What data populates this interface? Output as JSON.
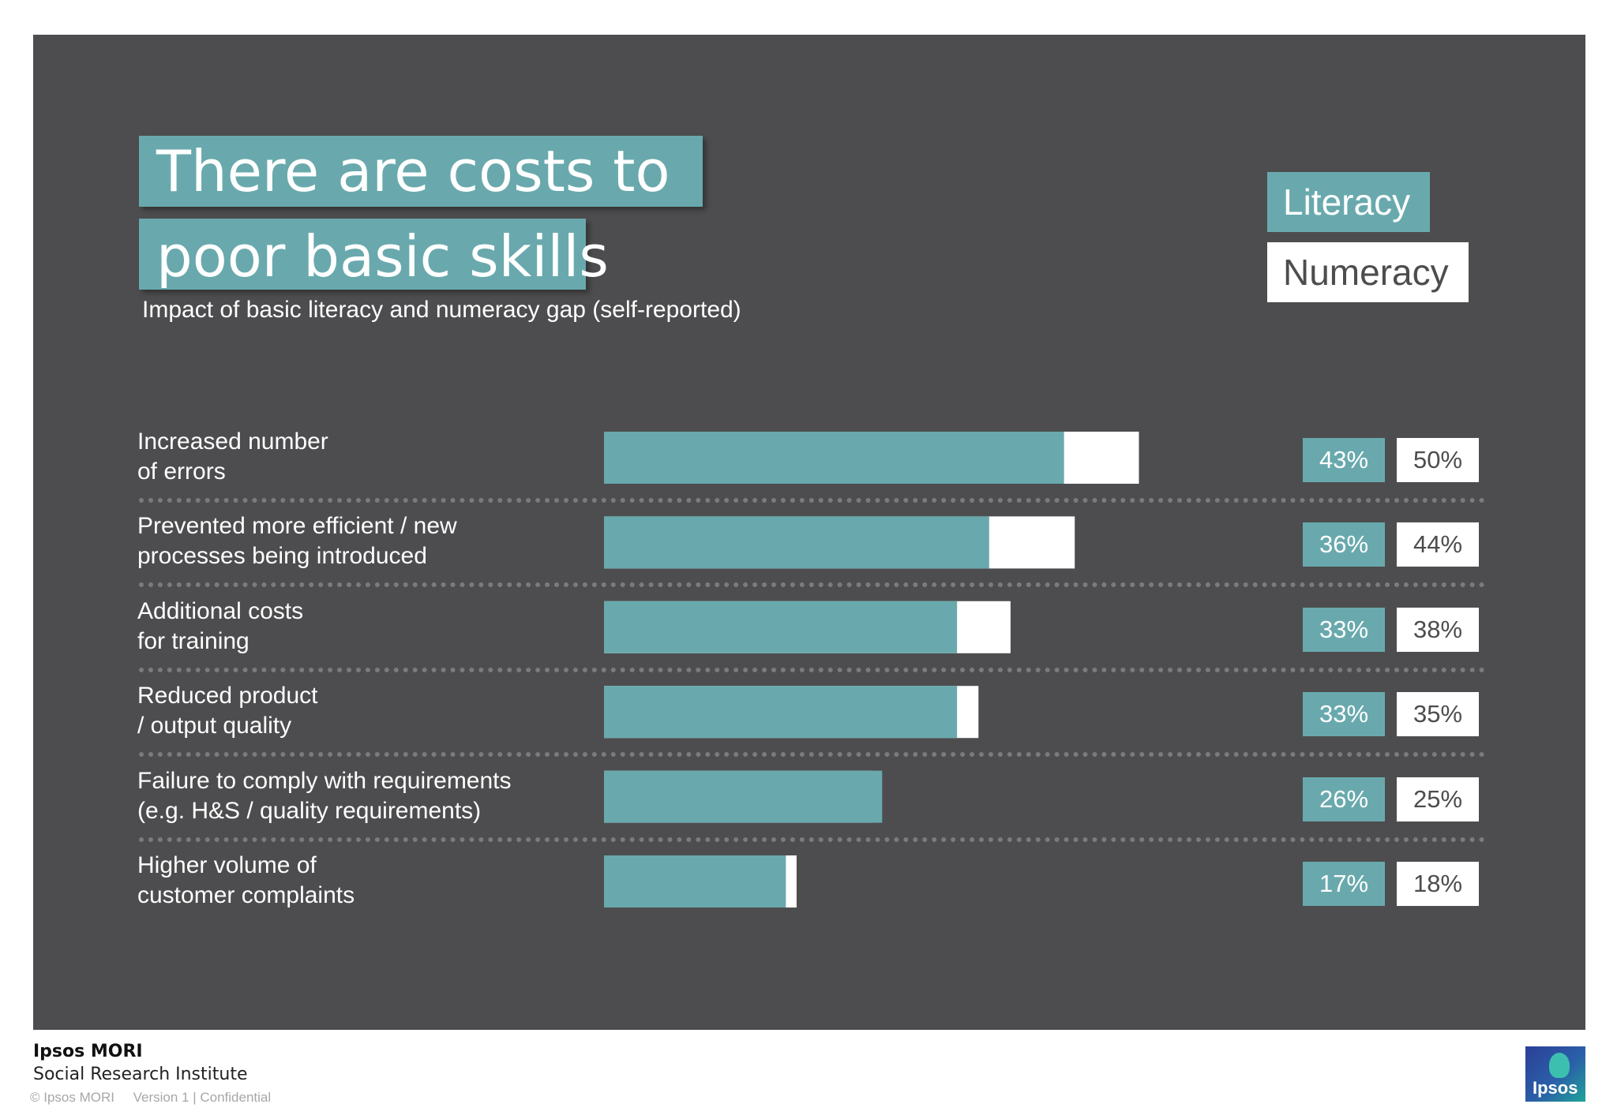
{
  "title": {
    "line1": "There are costs to",
    "line2": "poor basic skills"
  },
  "subtitle": "Impact of basic literacy and numeracy gap (self-reported)",
  "legend": {
    "literacy": "Literacy",
    "numeracy": "Numeracy"
  },
  "colors": {
    "literacy": "#69a9ad",
    "numeracy": "#ffffff",
    "background": "#4d4d4f"
  },
  "chart_data": {
    "type": "bar",
    "orientation": "horizontal",
    "title": "There are costs to poor basic skills",
    "subtitle": "Impact of basic literacy and numeracy gap (self-reported)",
    "categories": [
      "Increased number\nof errors",
      "Prevented more efficient / new\nprocesses being introduced",
      "Additional costs\nfor training",
      "Reduced product\n/ output quality",
      "Failure to comply with requirements\n(e.g. H&S / quality requirements)",
      "Higher volume of\ncustomer complaints"
    ],
    "series": [
      {
        "name": "Literacy",
        "color": "#69a9ad",
        "values": [
          43,
          36,
          33,
          33,
          26,
          17
        ],
        "labels": [
          "43%",
          "36%",
          "33%",
          "33%",
          "26%",
          "17%"
        ]
      },
      {
        "name": "Numeracy",
        "color": "#ffffff",
        "values": [
          50,
          44,
          38,
          35,
          25,
          18
        ],
        "labels": [
          "50%",
          "44%",
          "38%",
          "35%",
          "25%",
          "18%"
        ]
      }
    ],
    "overlapping_bars": true,
    "legend_position": "top-right",
    "grid": false
  },
  "footer": {
    "brand": "Ipsos MORI",
    "institute": "Social Research Institute",
    "copyright": "© Ipsos MORI     Version 1 | Confidential",
    "logo_text": "Ipsos"
  }
}
